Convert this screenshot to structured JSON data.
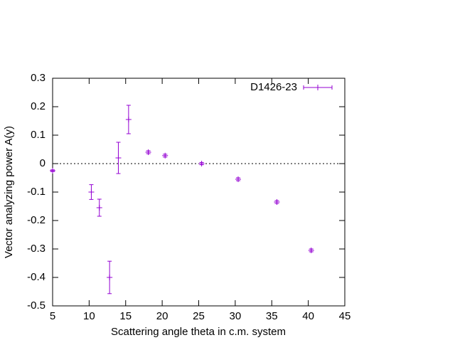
{
  "chart_data": {
    "type": "errorbar",
    "xlabel": "Scattering angle theta in c.m. system",
    "ylabel": "Vector analyzing power A(y)",
    "x": [
      5,
      10.3,
      11.4,
      12.8,
      14.0,
      15.4,
      18.1,
      20.4,
      25.4,
      30.4,
      35.7,
      40.4
    ],
    "series": [
      {
        "name": "D1426-23",
        "color": "#9400d3",
        "values": [
          -0.025,
          -0.1,
          -0.155,
          -0.4,
          0.02,
          0.155,
          0.04,
          0.028,
          0.0,
          -0.055,
          -0.135,
          -0.305
        ],
        "errors": [
          0.003,
          0.026,
          0.03,
          0.057,
          0.055,
          0.05,
          0.005,
          0.005,
          0.004,
          0.005,
          0.005,
          0.005
        ]
      }
    ],
    "xlim": [
      5,
      45
    ],
    "xticks": [
      5,
      10,
      15,
      20,
      25,
      30,
      35,
      40,
      45
    ],
    "ylim": [
      -0.5,
      0.3
    ],
    "yticks": [
      -0.5,
      -0.4,
      -0.3,
      -0.2,
      -0.1,
      0,
      0.1,
      0.2,
      0.3
    ],
    "zero_line": true,
    "legend": "top-right"
  }
}
